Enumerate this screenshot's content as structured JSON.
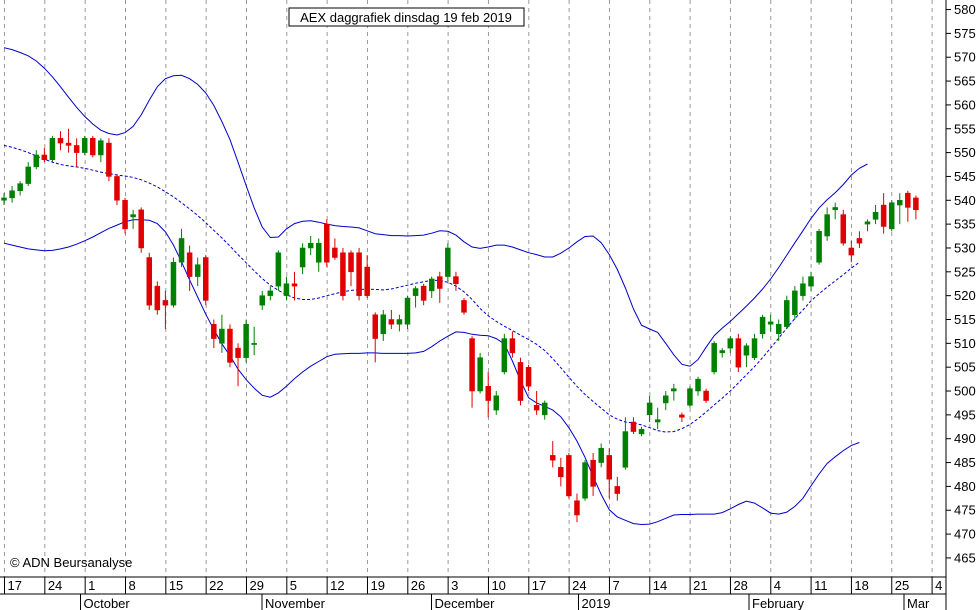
{
  "chart_data": {
    "type": "candlestick",
    "title": "AEX daggrafiek dinsdag 19 feb 2019",
    "watermark": "© ADN Beursanalyse",
    "ylim": [
      461,
      582
    ],
    "y_ticks": [
      465,
      470,
      475,
      480,
      485,
      490,
      495,
      500,
      505,
      510,
      515,
      520,
      525,
      530,
      535,
      540,
      545,
      550,
      555,
      560,
      565,
      570,
      575,
      580
    ],
    "x_tick_labels": [
      "17",
      "24",
      "1",
      "8",
      "15",
      "22",
      "29",
      "5",
      "12",
      "19",
      "26",
      "3",
      "10",
      "17",
      "24",
      "7",
      "14",
      "21",
      "28",
      "4",
      "11",
      "18",
      "25",
      "4"
    ],
    "month_labels": [
      "October",
      "November",
      "December",
      "2019",
      "February",
      "Mar"
    ],
    "colors": {
      "up": "#008000",
      "down": "#e00000",
      "band": "#0000cc",
      "grid": "#999999",
      "background": "#ffffff"
    },
    "candles": [
      [
        540.0,
        541.5,
        539.0,
        540.5
      ],
      [
        540.5,
        543.0,
        539.5,
        542.0
      ],
      [
        542.0,
        544.0,
        541.0,
        543.5
      ],
      [
        543.5,
        548.0,
        543.0,
        547.0
      ],
      [
        547.0,
        550.5,
        546.5,
        549.5
      ],
      [
        549.5,
        551.0,
        548.0,
        548.5
      ],
      [
        548.5,
        553.5,
        548.0,
        553.0
      ],
      [
        553.0,
        554.5,
        550.5,
        552.0
      ],
      [
        552.0,
        555.0,
        550.0,
        551.5
      ],
      [
        551.5,
        553.0,
        547.0,
        550.0
      ],
      [
        550.0,
        553.5,
        549.5,
        553.0
      ],
      [
        553.0,
        553.5,
        549.0,
        549.5
      ],
      [
        549.5,
        553.0,
        548.0,
        552.5
      ],
      [
        552.0,
        553.0,
        544.0,
        545.0
      ],
      [
        545.0,
        545.5,
        539.0,
        540.0
      ],
      [
        540.0,
        540.5,
        533.0,
        534.0
      ],
      [
        536.5,
        538.0,
        534.0,
        537.0
      ],
      [
        538.0,
        538.5,
        529.0,
        530.0
      ],
      [
        528.0,
        529.0,
        517.0,
        518.0
      ],
      [
        522.0,
        523.0,
        516.0,
        517.0
      ],
      [
        519.0,
        521.0,
        513.0,
        518.0
      ],
      [
        518.0,
        528.0,
        517.5,
        527.0
      ],
      [
        527.0,
        534.0,
        526.0,
        532.0
      ],
      [
        529.0,
        530.5,
        521.0,
        524.0
      ],
      [
        524.0,
        528.0,
        522.0,
        526.5
      ],
      [
        528.0,
        528.5,
        518.0,
        519.0
      ],
      [
        514.0,
        515.0,
        509.0,
        511.0
      ],
      [
        510.0,
        516.0,
        508.0,
        513.0
      ],
      [
        513.0,
        514.0,
        505.0,
        506.0
      ],
      [
        509.0,
        510.0,
        501.0,
        507.0
      ],
      [
        507.0,
        515.0,
        506.0,
        514.0
      ],
      [
        510.0,
        513.5,
        507.5,
        510.0
      ],
      [
        518.0,
        521.0,
        517.0,
        520.0
      ],
      [
        520.0,
        522.0,
        519.0,
        521.0
      ],
      [
        522.0,
        529.5,
        521.0,
        529.0
      ],
      [
        520.0,
        524.0,
        519.0,
        522.5
      ],
      [
        522.5,
        525.0,
        519.0,
        522.0
      ],
      [
        526.0,
        531.0,
        524.5,
        530.0
      ],
      [
        530.0,
        532.5,
        528.5,
        531.0
      ],
      [
        527.0,
        532.0,
        525.0,
        531.0
      ],
      [
        535.0,
        536.0,
        526.0,
        527.0
      ],
      [
        530.0,
        532.0,
        527.5,
        528.0
      ],
      [
        529.0,
        530.0,
        519.0,
        520.0
      ],
      [
        529.0,
        529.5,
        522.0,
        525.0
      ],
      [
        529.0,
        530.0,
        519.0,
        520.0
      ],
      [
        526.0,
        528.5,
        519.5,
        520.0
      ],
      [
        516.0,
        516.5,
        506.0,
        511.0
      ],
      [
        512.0,
        517.0,
        510.5,
        516.0
      ],
      [
        515.0,
        517.0,
        513.0,
        514.0
      ],
      [
        514.0,
        516.0,
        512.5,
        515.0
      ],
      [
        514.0,
        520.0,
        513.0,
        519.5
      ],
      [
        520.0,
        522.0,
        517.5,
        521.5
      ],
      [
        522.0,
        522.5,
        518.0,
        519.0
      ],
      [
        521.0,
        524.0,
        519.5,
        523.5
      ],
      [
        524.0,
        525.0,
        518.5,
        521.5
      ],
      [
        524.0,
        531.0,
        523.0,
        530.0
      ],
      [
        524.0,
        525.0,
        521.0,
        522.5
      ],
      [
        519.0,
        519.5,
        516.0,
        516.5
      ],
      [
        511.0,
        511.5,
        496.5,
        500.0
      ],
      [
        500.0,
        508.0,
        499.5,
        507.0
      ],
      [
        501.0,
        504.0,
        494.5,
        498.0
      ],
      [
        496.0,
        500.0,
        495.0,
        499.0
      ],
      [
        504.0,
        512.0,
        503.5,
        511.0
      ],
      [
        511.0,
        512.5,
        507.0,
        508.0
      ],
      [
        506.0,
        507.0,
        497.0,
        498.0
      ],
      [
        505.0,
        505.5,
        500.0,
        501.0
      ],
      [
        497.0,
        500.0,
        495.0,
        496.0
      ],
      [
        495.0,
        498.0,
        494.0,
        497.5
      ],
      [
        486.5,
        489.5,
        484.0,
        485.5
      ],
      [
        484.0,
        486.0,
        480.0,
        482.0
      ],
      [
        486.5,
        487.0,
        477.5,
        478.0
      ],
      [
        477.0,
        478.5,
        472.5,
        474.0
      ],
      [
        477.5,
        485.5,
        477.0,
        485.0
      ],
      [
        485.5,
        487.0,
        478.0,
        480.0
      ],
      [
        485.0,
        489.0,
        484.0,
        488.0
      ],
      [
        486.5,
        488.0,
        477.5,
        481.5
      ],
      [
        480.0,
        482.0,
        477.0,
        478.5
      ],
      [
        484.0,
        494.5,
        483.5,
        491.5
      ],
      [
        493.5,
        494.5,
        491.0,
        491.5
      ],
      [
        491.0,
        492.5,
        490.5,
        492.0
      ],
      [
        495.0,
        499.0,
        493.5,
        497.5
      ],
      [
        493.5,
        496.5,
        492.0,
        494.0
      ],
      [
        497.5,
        500.0,
        496.0,
        499.0
      ],
      [
        500.0,
        501.5,
        498.0,
        500.5
      ],
      [
        495.0,
        495.5,
        493.5,
        494.5
      ],
      [
        497.0,
        501.0,
        496.5,
        500.5
      ],
      [
        500.0,
        503.0,
        499.0,
        502.5
      ],
      [
        500.0,
        500.5,
        497.5,
        498.0
      ],
      [
        504.0,
        510.5,
        503.5,
        510.0
      ],
      [
        508.0,
        509.0,
        507.0,
        508.5
      ],
      [
        509.0,
        511.5,
        508.0,
        511.0
      ],
      [
        511.0,
        512.0,
        504.0,
        505.0
      ],
      [
        507.5,
        510.0,
        505.0,
        509.5
      ],
      [
        507.0,
        512.0,
        506.5,
        511.0
      ],
      [
        512.0,
        516.0,
        511.0,
        515.5
      ],
      [
        514.0,
        516.0,
        512.5,
        514.5
      ],
      [
        512.0,
        515.0,
        510.5,
        514.0
      ],
      [
        513.5,
        520.0,
        513.0,
        519.0
      ],
      [
        516.0,
        522.0,
        515.0,
        521.0
      ],
      [
        520.0,
        524.0,
        519.0,
        522.5
      ],
      [
        522.0,
        525.0,
        521.0,
        524.0
      ],
      [
        527.0,
        534.0,
        526.5,
        533.5
      ],
      [
        532.5,
        538.5,
        531.5,
        537.0
      ],
      [
        538.0,
        539.5,
        536.0,
        538.5
      ],
      [
        537.0,
        538.0,
        530.5,
        531.0
      ],
      [
        530.0,
        531.5,
        527.0,
        528.5
      ],
      [
        532.0,
        533.5,
        530.0,
        531.0
      ],
      [
        535.0,
        536.0,
        533.5,
        535.5
      ],
      [
        536.0,
        539.0,
        535.0,
        537.5
      ],
      [
        539.0,
        541.5,
        533.0,
        534.5
      ],
      [
        534.0,
        540.0,
        533.5,
        539.5
      ],
      [
        539.0,
        541.5,
        535.0,
        540.0
      ],
      [
        541.5,
        542.0,
        535.5,
        538.5
      ],
      [
        540.5,
        541.0,
        536.0,
        538.0
      ]
    ],
    "moving_average": [
      551.5,
      551.1,
      550.6,
      550.0,
      549.3,
      548.6,
      548.0,
      547.5,
      547.2,
      547.0,
      546.7,
      546.3,
      545.9,
      545.6,
      545.3,
      545.1,
      544.8,
      544.3,
      543.6,
      542.8,
      541.8,
      540.7,
      539.5,
      538.2,
      536.8,
      535.3,
      533.7,
      532.1,
      530.4,
      528.6,
      526.9,
      525.2,
      523.6,
      522.2,
      521.1,
      520.2,
      519.5,
      519.2,
      519.2,
      519.5,
      520.0,
      520.4,
      520.8,
      521.1,
      521.3,
      521.4,
      521.3,
      521.2,
      521.4,
      521.8,
      522.2,
      522.6,
      522.9,
      523.2,
      523.2,
      522.8,
      522.0,
      520.8,
      519.2,
      517.3,
      515.8,
      514.6,
      513.6,
      512.7,
      511.7,
      510.8,
      509.8,
      508.5,
      506.8,
      504.9,
      502.9,
      501.0,
      499.3,
      497.8,
      496.4,
      495.0,
      494.1,
      493.5,
      493.3,
      492.9,
      492.3,
      491.7,
      491.4,
      491.5,
      492.1,
      493.0,
      494.2,
      495.6,
      497.1,
      498.5,
      500.0,
      501.7,
      503.4,
      505.1,
      507.0,
      509.0,
      511.1,
      513.2,
      515.2,
      517.0,
      518.9,
      520.4,
      521.8,
      523.1,
      524.4,
      525.8,
      527.0
    ],
    "upper_band": [
      572.0,
      571.6,
      571.0,
      570.3,
      569.2,
      567.7,
      565.9,
      563.8,
      561.6,
      559.5,
      557.6,
      556.0,
      554.7,
      554.0,
      553.7,
      554.2,
      555.5,
      557.9,
      561.0,
      563.8,
      565.5,
      566.1,
      566.2,
      565.5,
      564.3,
      562.5,
      559.9,
      556.5,
      552.7,
      548.0,
      543.1,
      538.4,
      534.4,
      532.2,
      532.3,
      534.0,
      535.1,
      535.6,
      535.7,
      535.4,
      535.0,
      534.7,
      534.5,
      534.4,
      534.2,
      533.6,
      533.0,
      532.8,
      532.6,
      532.6,
      532.5,
      532.6,
      532.7,
      533.1,
      533.6,
      533.5,
      532.7,
      531.3,
      530.2,
      529.9,
      530.2,
      530.6,
      530.6,
      530.2,
      529.6,
      529.0,
      528.6,
      528.1,
      528.1,
      528.9,
      530.0,
      531.3,
      532.4,
      532.5,
      531.1,
      528.6,
      525.5,
      521.6,
      517.2,
      513.8,
      513.0,
      512.3,
      510.0,
      507.6,
      505.6,
      505.2,
      506.6,
      509.2,
      511.6,
      513.2,
      514.6,
      516.2,
      517.8,
      519.5,
      521.4,
      523.5,
      525.9,
      528.5,
      531.1,
      533.6,
      536.2,
      538.4,
      540.1,
      541.6,
      543.3,
      545.3,
      546.7,
      547.6
    ],
    "lower_band": [
      531.0,
      530.6,
      530.2,
      529.8,
      529.6,
      529.4,
      529.5,
      529.8,
      530.2,
      530.8,
      531.5,
      532.3,
      533.2,
      534.1,
      534.8,
      535.5,
      535.9,
      535.9,
      535.8,
      535.1,
      533.4,
      530.6,
      527.1,
      523.3,
      519.7,
      516.1,
      512.9,
      509.9,
      507.4,
      504.6,
      502.4,
      500.6,
      499.1,
      498.7,
      499.6,
      501.0,
      502.6,
      504.0,
      505.2,
      506.2,
      507.2,
      507.7,
      507.8,
      507.9,
      507.9,
      508.0,
      508.0,
      507.9,
      507.9,
      507.9,
      507.9,
      508.0,
      508.3,
      509.3,
      510.5,
      511.5,
      512.4,
      512.3,
      511.9,
      511.7,
      511.6,
      511.0,
      509.9,
      506.3,
      502.2,
      498.6,
      497.5,
      496.8,
      496.0,
      494.6,
      492.3,
      489.5,
      486.1,
      482.1,
      478.3,
      475.1,
      473.6,
      472.9,
      472.2,
      472.0,
      472.1,
      472.6,
      473.3,
      474.0,
      474.1,
      474.1,
      474.2,
      474.2,
      474.2,
      474.5,
      475.3,
      476.2,
      476.9,
      476.5,
      475.5,
      474.4,
      474.2,
      474.6,
      475.8,
      477.5,
      480.1,
      482.6,
      484.8,
      486.2,
      487.5,
      488.6,
      489.2
    ]
  }
}
